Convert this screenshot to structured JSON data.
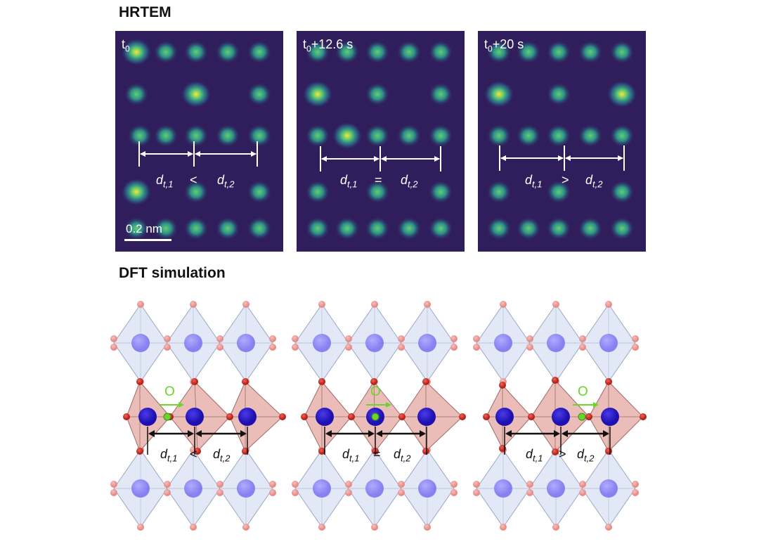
{
  "sections": {
    "hrtem": "HRTEM",
    "dft": "DFT simulation"
  },
  "hrtem_panels": [
    {
      "time_base": "t",
      "time_sub": "0",
      "time_suffix": "",
      "comparison": "<"
    },
    {
      "time_base": "t",
      "time_sub": "0",
      "time_suffix": "+12.6 s",
      "comparison": "="
    },
    {
      "time_base": "t",
      "time_sub": "0",
      "time_suffix": "+20 s",
      "comparison": ">"
    }
  ],
  "distance_labels": {
    "d1_base": "d",
    "d1_sub": "t,1",
    "d2_base": "d",
    "d2_sub": "t,2"
  },
  "scale_bar": {
    "label": "0.2 nm"
  },
  "dft_panels": [
    {
      "oxygen_label": "O",
      "comparison": "<"
    },
    {
      "oxygen_label": "O",
      "comparison": "="
    },
    {
      "oxygen_label": "O",
      "comparison": ">"
    }
  ],
  "colors": {
    "hrtem_background": "#2f1d5c",
    "hrtem_spot_core": "#f4e93a",
    "hrtem_spot_mid": "#4cbf7a",
    "octahedron_light": "#dfe6f5",
    "octahedron_red": "#e8b7b2",
    "b_site_light": "#7b6ff0",
    "b_site_dark": "#1e0fb0",
    "oxygen_atom": "#d93a2f",
    "oxygen_atom_light": "#e88a85",
    "vacancy_oxygen": "#6bd62a"
  }
}
